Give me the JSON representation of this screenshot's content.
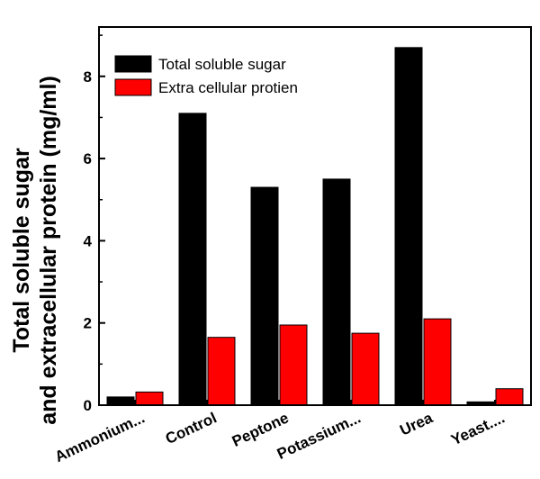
{
  "chart_data": {
    "type": "bar",
    "title": "",
    "xlabel": "",
    "ylabel": [
      "Total soluble sugar",
      "and extracellular protein (mg/ml)"
    ],
    "categories": [
      "Ammonium...",
      "Control",
      "Peptone",
      "Potassium...",
      "Urea",
      "Yeast...."
    ],
    "series": [
      {
        "name": "Total soluble sugar",
        "color": "#000000",
        "values": [
          0.2,
          7.1,
          5.3,
          5.5,
          8.7,
          0.08
        ]
      },
      {
        "name": "Extra cellular protien",
        "color": "#ff0000",
        "values": [
          0.32,
          1.65,
          1.95,
          1.75,
          2.1,
          0.4
        ]
      }
    ],
    "ylim": [
      0,
      9.2
    ],
    "yticks": [
      "0",
      "2",
      "4",
      "6",
      "8"
    ],
    "ytick_values": [
      0,
      2,
      4,
      6,
      8
    ],
    "legend_position": "top-left",
    "grid": false
  }
}
